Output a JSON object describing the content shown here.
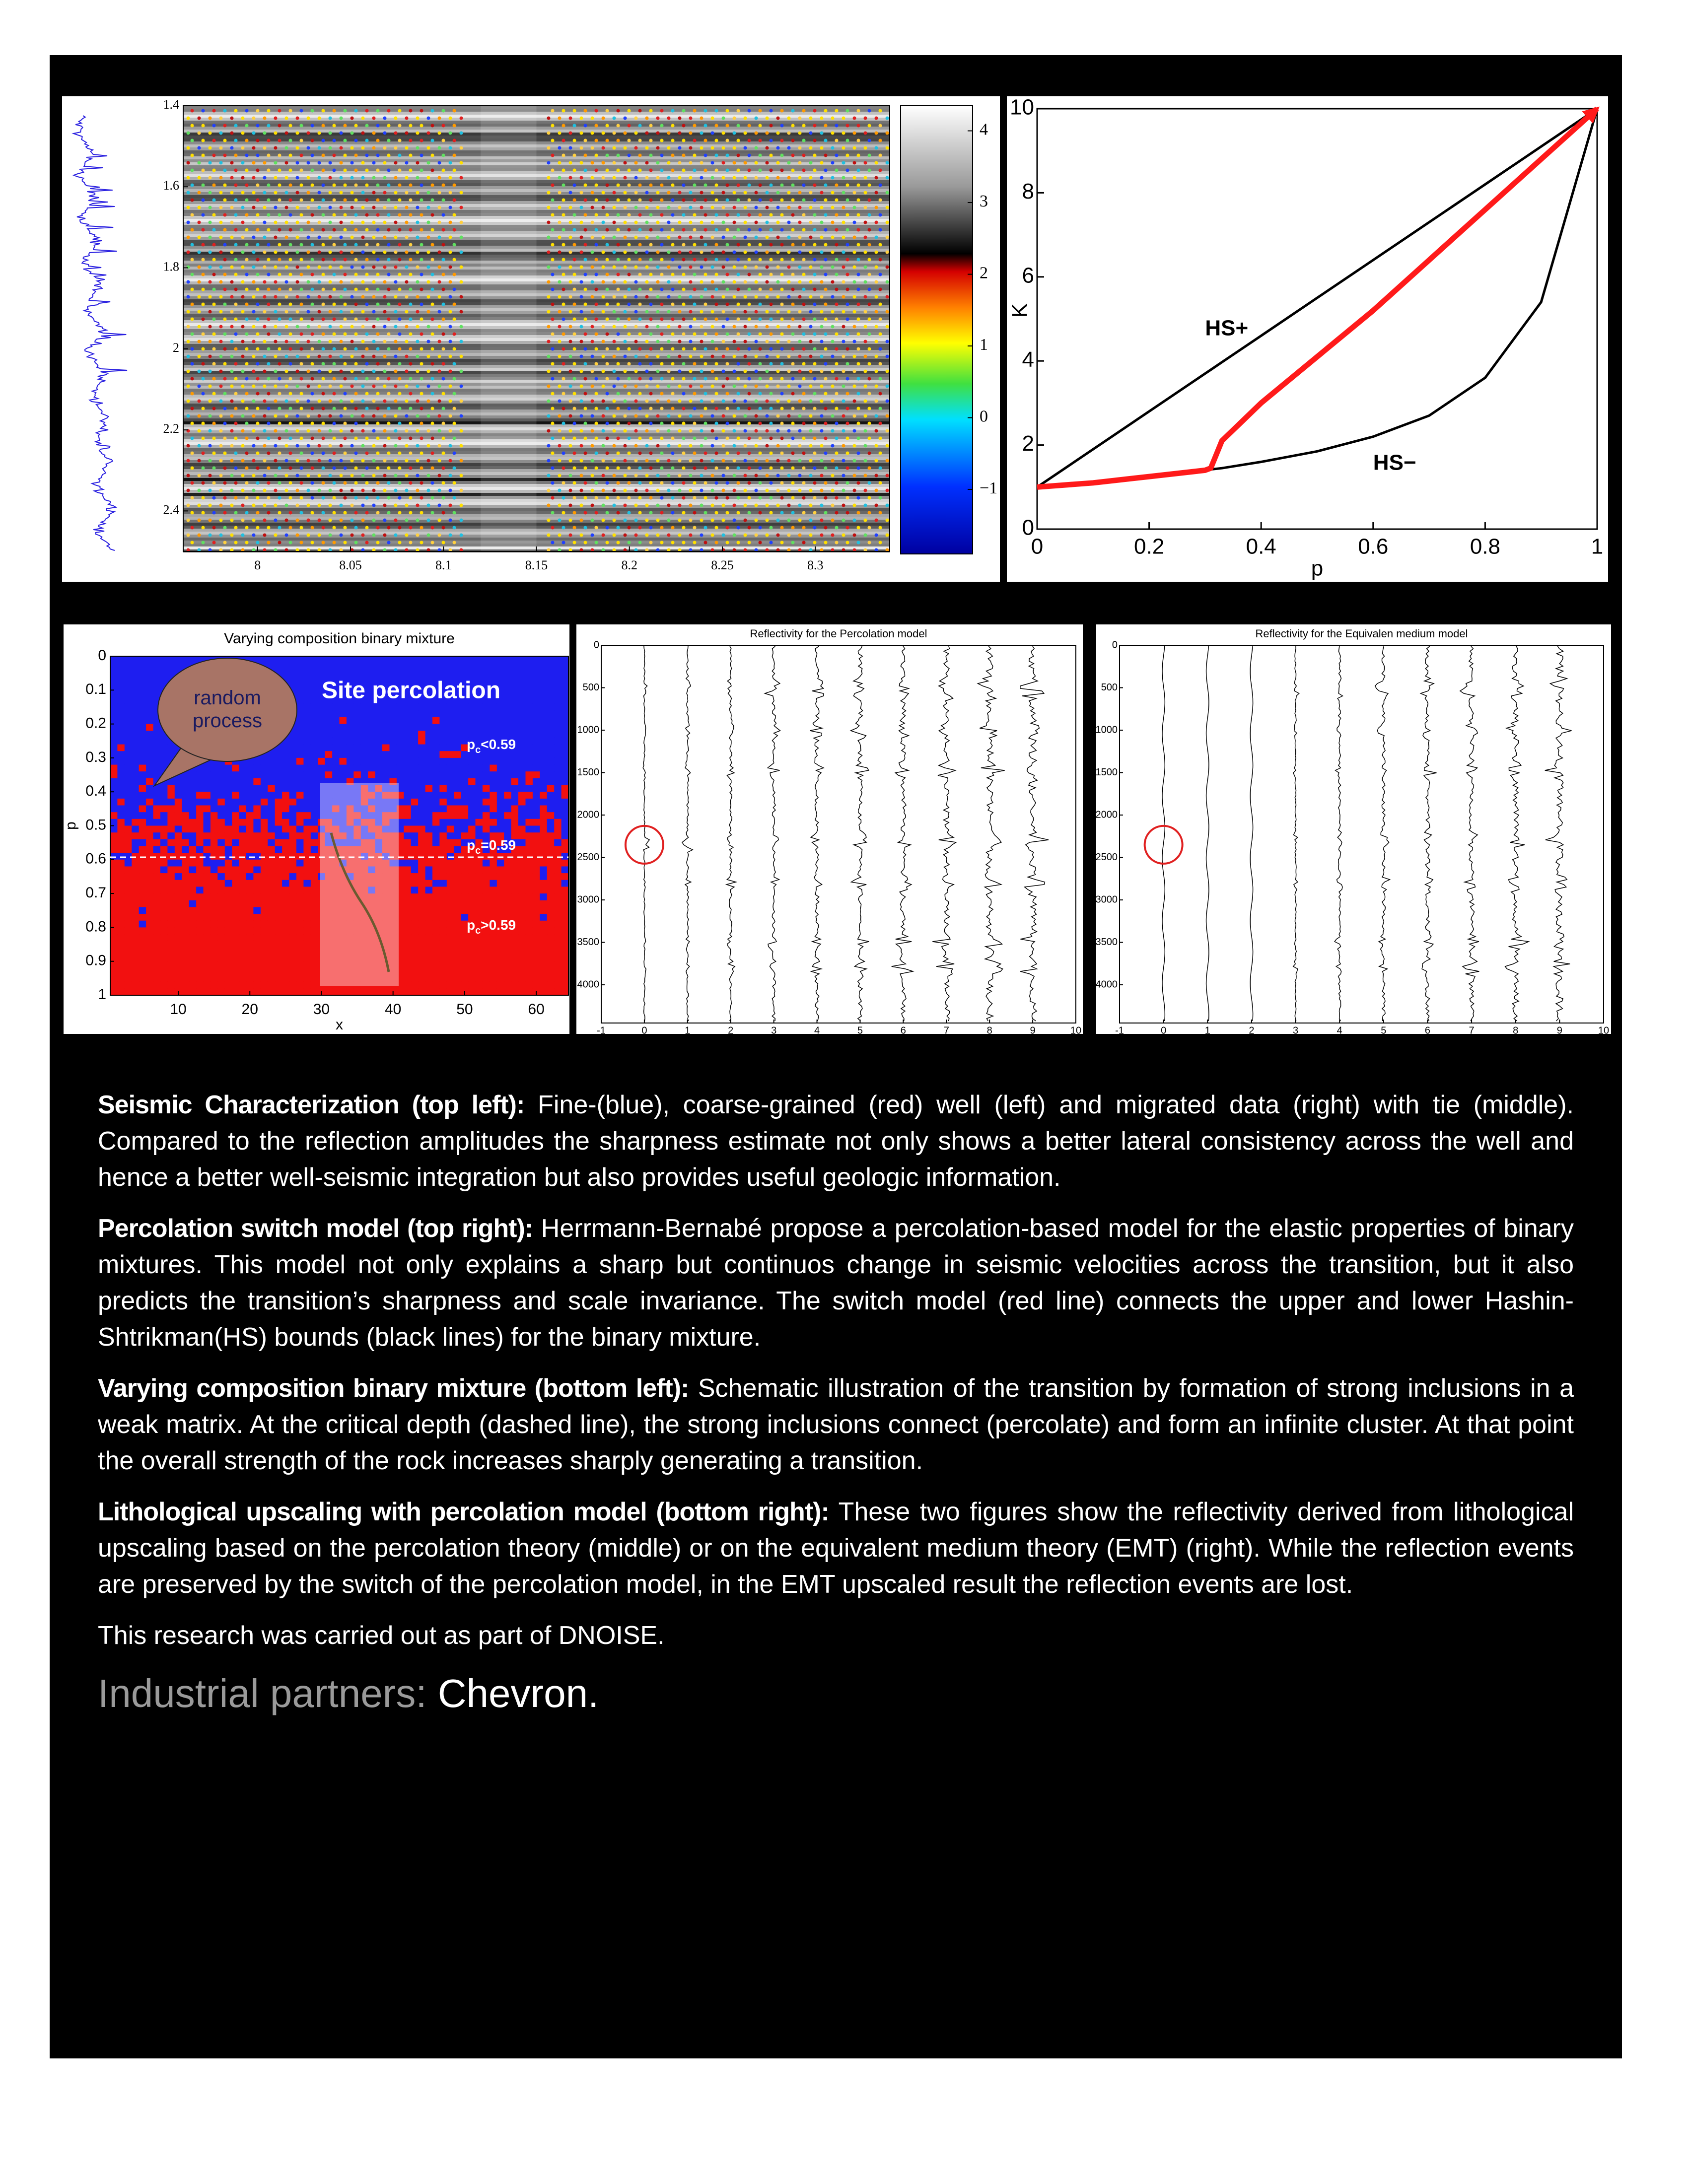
{
  "chart_data": [
    {
      "type": "heatmap",
      "ylim": [
        1.4,
        2.5
      ],
      "yticks": [
        1.4,
        1.6,
        1.8,
        2,
        2.2,
        2.4
      ],
      "xlim": [
        7.96,
        8.34
      ],
      "xticks": [
        8,
        8.05,
        8.1,
        8.15,
        8.2,
        8.25,
        8.3
      ],
      "colorbar": {
        "lim": [
          -1.9,
          4.35
        ],
        "ticks": [
          {
            "value": -1,
            "label": "−1"
          },
          0,
          1,
          2,
          3,
          4
        ]
      }
    },
    {
      "type": "line",
      "xlabel": "p",
      "ylabel": "K",
      "xlim": [
        0,
        1
      ],
      "xticks": [
        0,
        0.2,
        0.4,
        0.6,
        0.8,
        1
      ],
      "ylim": [
        0,
        10
      ],
      "yticks": [
        0,
        2,
        4,
        6,
        8,
        10
      ],
      "x": [
        0,
        0.1,
        0.2,
        0.3,
        0.31,
        0.33,
        0.4,
        0.5,
        0.6,
        0.7,
        0.8,
        0.9,
        1
      ],
      "series": [
        {
          "color": "#000000",
          "values": [
            1,
            1.9,
            2.8,
            3.7,
            3.79,
            3.97,
            4.6,
            5.5,
            6.4,
            7.3,
            8.2,
            9.1,
            10
          ]
        },
        {
          "color": "#000000",
          "values": [
            1,
            1.1,
            1.25,
            1.4,
            1.42,
            1.45,
            1.6,
            1.85,
            2.2,
            2.7,
            3.6,
            5.4,
            10
          ]
        },
        {
          "color": "#ff1a1a",
          "values": [
            1,
            1.1,
            1.25,
            1.4,
            1.45,
            2.1,
            3.0,
            4.1,
            5.2,
            6.4,
            7.6,
            8.8,
            10
          ]
        }
      ],
      "annotations": [
        {
          "text": "HS+"
        },
        {
          "text": "HS−"
        }
      ]
    },
    {
      "type": "heatmap",
      "title": "Varying composition binary mixture",
      "xlabel": "x",
      "ylabel": "p",
      "xlim": [
        0.5,
        64.5
      ],
      "xticks": [
        10,
        20,
        30,
        40,
        50,
        60
      ],
      "ylim": [
        0,
        1
      ],
      "yticks": [
        0,
        0.1,
        0.2,
        0.3,
        0.4,
        0.5,
        0.6,
        0.7,
        0.8,
        0.9,
        1
      ],
      "annotations": [
        {
          "text": "random process"
        },
        {
          "text": "Site percolation"
        },
        {
          "base": "p",
          "sub": "c",
          "text": "<0.59"
        },
        {
          "base": "p",
          "sub": "c",
          "text": "=0.59"
        },
        {
          "base": "p",
          "sub": "c",
          "text": ">0.59"
        }
      ]
    },
    {
      "type": "wiggle",
      "title": "Reflectivity for the Percolation model",
      "xlim": [
        -1,
        10
      ],
      "xticks": [
        -1,
        0,
        1,
        2,
        3,
        4,
        5,
        6,
        7,
        8,
        9,
        10
      ],
      "ylim": [
        0,
        4450
      ],
      "yticks": [
        0,
        500,
        1000,
        1500,
        2000,
        2500,
        3000,
        3500,
        4000
      ]
    },
    {
      "type": "wiggle",
      "title": "Reflectivity for the Equivalen medium model",
      "xlim": [
        -1,
        10
      ],
      "xticks": [
        -1,
        0,
        1,
        2,
        3,
        4,
        5,
        6,
        7,
        8,
        9,
        10
      ],
      "ylim": [
        0,
        4450
      ],
      "yticks": [
        0,
        500,
        1000,
        1500,
        2000,
        2500,
        3000,
        3500,
        4000
      ]
    }
  ],
  "text": {
    "paragraphs": [
      {
        "lead": "Seismic Characterization (top left):",
        "body": "Fine-(blue), coarse-grained (red) well (left) and migrated data (right) with tie (mid­dle). Compared to the reflection amplitudes the sharpness estimate not only shows a better lateral consistency across the well and hence a better well-seismic integration but also provides useful geologic information."
      },
      {
        "lead": "Percolation switch model (top right):",
        "body": "Herrmann-Bernabé propose a percolation-based model for the elastic proper­ties of binary mixtures. This model not only explains a sharp but continuos change in seismic velocities across the transition, but it also predicts the transition’s  sharpness and scale invariance. The switch model (red line) connects the upper and lower Hashin-Shtrikman(HS) bounds (black lines) for the binary mixture."
      },
      {
        "lead": "Varying composition binary mixture (bottom left):",
        "body": "Schematic illustration of the transition by formation of strong inclu­sions in a weak matrix. At the critical depth (dashed line), the strong inclusions connect (percolate)  and form an infinite cluster. At that point the overall strength of the rock increases sharply generating a transition."
      },
      {
        "lead": "Lithological upscaling with percolation model (bottom right):",
        "body": "These two figures show the reflectivity derived from litho­logical upscaling based on the percolation theory (middle) or on the equivalent medium theory (EMT) (right). While the reflection events are preserved by the switch of the percolation model, in the EMT upscaled result the reflec­tion events are lost."
      }
    ],
    "note": "This research was carried out as part of DNOISE.",
    "partners": {
      "label": "Industrial partners:",
      "names": "Chevron."
    }
  }
}
